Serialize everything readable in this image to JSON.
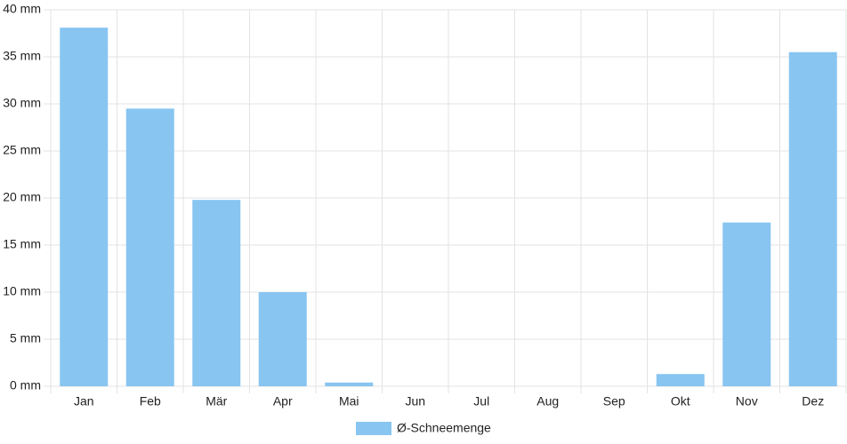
{
  "chart_data": {
    "type": "bar",
    "categories": [
      "Jan",
      "Feb",
      "Mär",
      "Apr",
      "Mai",
      "Jun",
      "Jul",
      "Aug",
      "Sep",
      "Okt",
      "Nov",
      "Dez"
    ],
    "series": [
      {
        "name": "Ø-Schneemenge",
        "color": "#88c5f1",
        "values": [
          38.1,
          29.5,
          19.8,
          10.0,
          0.4,
          0,
          0,
          0,
          0,
          1.3,
          17.4,
          35.5
        ]
      }
    ],
    "ylim": [
      0,
      40
    ],
    "yticks": [
      {
        "value": 0,
        "label": "0 mm"
      },
      {
        "value": 5,
        "label": "5 mm"
      },
      {
        "value": 10,
        "label": "10 mm"
      },
      {
        "value": 15,
        "label": "15 mm"
      },
      {
        "value": 20,
        "label": "20 mm"
      },
      {
        "value": 25,
        "label": "25 mm"
      },
      {
        "value": 30,
        "label": "30 mm"
      },
      {
        "value": 35,
        "label": "35 mm"
      },
      {
        "value": 40,
        "label": "40 mm"
      }
    ],
    "grid": true,
    "legend": "bottom"
  }
}
